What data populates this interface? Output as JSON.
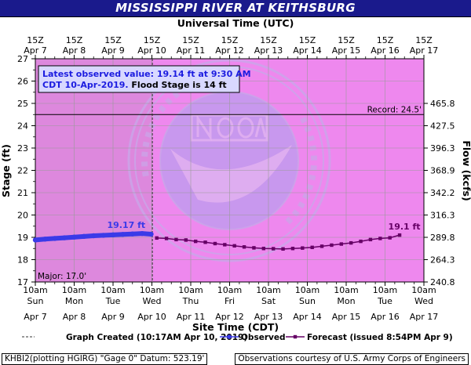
{
  "title": "MISSISSIPPI RIVER AT KEITHSBURG",
  "top_axis_title": "Universal Time (UTC)",
  "bottom_axis_title": "Site Time (CDT)",
  "left_axis_title": "Stage (ft)",
  "right_axis_title": "Flow (kcfs)",
  "info_box": {
    "line1": "Latest observed value: 19.14 ft at 9:30 AM",
    "line2a": "CDT 10-Apr-2019. ",
    "line2b": "Flood Stage is 14 ft"
  },
  "record_label": "Record: 24.5'",
  "major_label": "Major: 17.0'",
  "observed_peak_label": "19.17 ft",
  "forecast_end_label": "19.1 ft",
  "legend": {
    "graph_created": "Graph Created (10:17AM Apr 10, 2019)",
    "observed": "Observed",
    "forecast": "Forecast (issued 8:54PM Apr 9)"
  },
  "footer_left": "KHBI2(plotting HGIRG) \"Gage 0\" Datum:  523.19'",
  "footer_right": "Observations courtesy of U.S. Army Corps of Engineers",
  "colors": {
    "title_bg": "#1a1a8c",
    "past_bg": "#dd88dd",
    "future_bg": "#ee88ee",
    "observed": "#3a3ae8",
    "forecast": "#660066",
    "info_box_bg": "#d8d8ff"
  },
  "chart_data": {
    "type": "line",
    "y_left": {
      "min": 17,
      "max": 27,
      "ticks": [
        "17",
        "18",
        "19",
        "20",
        "21",
        "22",
        "23",
        "24",
        "25",
        "26",
        "27"
      ]
    },
    "y_right": {
      "ticks": [
        {
          "stage": 17.0,
          "label": "240.8"
        },
        {
          "stage": 18.0,
          "label": "264.3"
        },
        {
          "stage": 19.0,
          "label": "289.8"
        },
        {
          "stage": 20.0,
          "label": "316.3"
        },
        {
          "stage": 21.0,
          "label": "342.2"
        },
        {
          "stage": 22.0,
          "label": "368.9"
        },
        {
          "stage": 23.0,
          "label": "396.3"
        },
        {
          "stage": 24.0,
          "label": "427.5"
        },
        {
          "stage": 25.0,
          "label": "465.8"
        }
      ]
    },
    "x_bottom_ticks": [
      {
        "time": "Apr 7 10am",
        "l1": "10am",
        "l2": "Sun",
        "l3": "Apr 7"
      },
      {
        "time": "Apr 8 10am",
        "l1": "10am",
        "l2": "Mon",
        "l3": "Apr 8"
      },
      {
        "time": "Apr 9 10am",
        "l1": "10am",
        "l2": "Tue",
        "l3": "Apr 9"
      },
      {
        "time": "Apr 10 10am",
        "l1": "10am",
        "l2": "Wed",
        "l3": "Apr 10"
      },
      {
        "time": "Apr 11 10am",
        "l1": "10am",
        "l2": "Thu",
        "l3": "Apr 11"
      },
      {
        "time": "Apr 12 10am",
        "l1": "10am",
        "l2": "Fri",
        "l3": "Apr 12"
      },
      {
        "time": "Apr 13 10am",
        "l1": "10am",
        "l2": "Sat",
        "l3": "Apr 13"
      },
      {
        "time": "Apr 14 10am",
        "l1": "10am",
        "l2": "Sun",
        "l3": "Apr 14"
      },
      {
        "time": "Apr 15 10am",
        "l1": "10am",
        "l2": "Mon",
        "l3": "Apr 15"
      },
      {
        "time": "Apr 16 10am",
        "l1": "10am",
        "l2": "Tue",
        "l3": "Apr 16"
      },
      {
        "time": "Apr 17 10am",
        "l1": "10am",
        "l2": "Wed",
        "l3": "Apr 17"
      }
    ],
    "x_top_ticks": [
      {
        "l1": "15Z",
        "l2": "Apr 7"
      },
      {
        "l1": "15Z",
        "l2": "Apr 8"
      },
      {
        "l1": "15Z",
        "l2": "Apr 9"
      },
      {
        "l1": "15Z",
        "l2": "Apr 10"
      },
      {
        "l1": "15Z",
        "l2": "Apr 11"
      },
      {
        "l1": "15Z",
        "l2": "Apr 12"
      },
      {
        "l1": "15Z",
        "l2": "Apr 13"
      },
      {
        "l1": "15Z",
        "l2": "Apr 14"
      },
      {
        "l1": "15Z",
        "l2": "Apr 15"
      },
      {
        "l1": "15Z",
        "l2": "Apr 16"
      },
      {
        "l1": "15Z",
        "l2": "Apr 17"
      }
    ],
    "record_stage": 24.5,
    "major_stage": 17.0,
    "graph_created": "Apr 10 10:17am",
    "observed": [
      {
        "time": "Apr 7 10am",
        "stage": 18.88
      },
      {
        "time": "Apr 7 4pm",
        "stage": 18.92
      },
      {
        "time": "Apr 7 10pm",
        "stage": 18.95
      },
      {
        "time": "Apr 8 4am",
        "stage": 18.98
      },
      {
        "time": "Apr 8 10am",
        "stage": 19.01
      },
      {
        "time": "Apr 8 4pm",
        "stage": 19.04
      },
      {
        "time": "Apr 8 10pm",
        "stage": 19.07
      },
      {
        "time": "Apr 9 4am",
        "stage": 19.09
      },
      {
        "time": "Apr 9 10am",
        "stage": 19.11
      },
      {
        "time": "Apr 9 4pm",
        "stage": 19.13
      },
      {
        "time": "Apr 9 10pm",
        "stage": 19.15
      },
      {
        "time": "Apr 10 4am",
        "stage": 19.17
      },
      {
        "time": "Apr 10 9:30am",
        "stage": 19.14
      }
    ],
    "forecast": [
      {
        "time": "Apr 10 1pm",
        "stage": 18.97
      },
      {
        "time": "Apr 10 7pm",
        "stage": 18.95
      },
      {
        "time": "Apr 11 1am",
        "stage": 18.9
      },
      {
        "time": "Apr 11 7am",
        "stage": 18.88
      },
      {
        "time": "Apr 11 1pm",
        "stage": 18.82
      },
      {
        "time": "Apr 11 7pm",
        "stage": 18.78
      },
      {
        "time": "Apr 12 1am",
        "stage": 18.72
      },
      {
        "time": "Apr 12 7am",
        "stage": 18.67
      },
      {
        "time": "Apr 12 1pm",
        "stage": 18.62
      },
      {
        "time": "Apr 12 7pm",
        "stage": 18.57
      },
      {
        "time": "Apr 13 1am",
        "stage": 18.53
      },
      {
        "time": "Apr 13 7am",
        "stage": 18.5
      },
      {
        "time": "Apr 13 1pm",
        "stage": 18.49
      },
      {
        "time": "Apr 13 7pm",
        "stage": 18.48
      },
      {
        "time": "Apr 14 1am",
        "stage": 18.5
      },
      {
        "time": "Apr 14 7am",
        "stage": 18.52
      },
      {
        "time": "Apr 14 1pm",
        "stage": 18.55
      },
      {
        "time": "Apr 14 7pm",
        "stage": 18.6
      },
      {
        "time": "Apr 15 1am",
        "stage": 18.65
      },
      {
        "time": "Apr 15 7am",
        "stage": 18.7
      },
      {
        "time": "Apr 15 1pm",
        "stage": 18.75
      },
      {
        "time": "Apr 15 7pm",
        "stage": 18.82
      },
      {
        "time": "Apr 16 1am",
        "stage": 18.9
      },
      {
        "time": "Apr 16 7am",
        "stage": 18.95
      },
      {
        "time": "Apr 16 1pm",
        "stage": 18.98
      },
      {
        "time": "Apr 16 7pm",
        "stage": 19.1
      }
    ]
  }
}
